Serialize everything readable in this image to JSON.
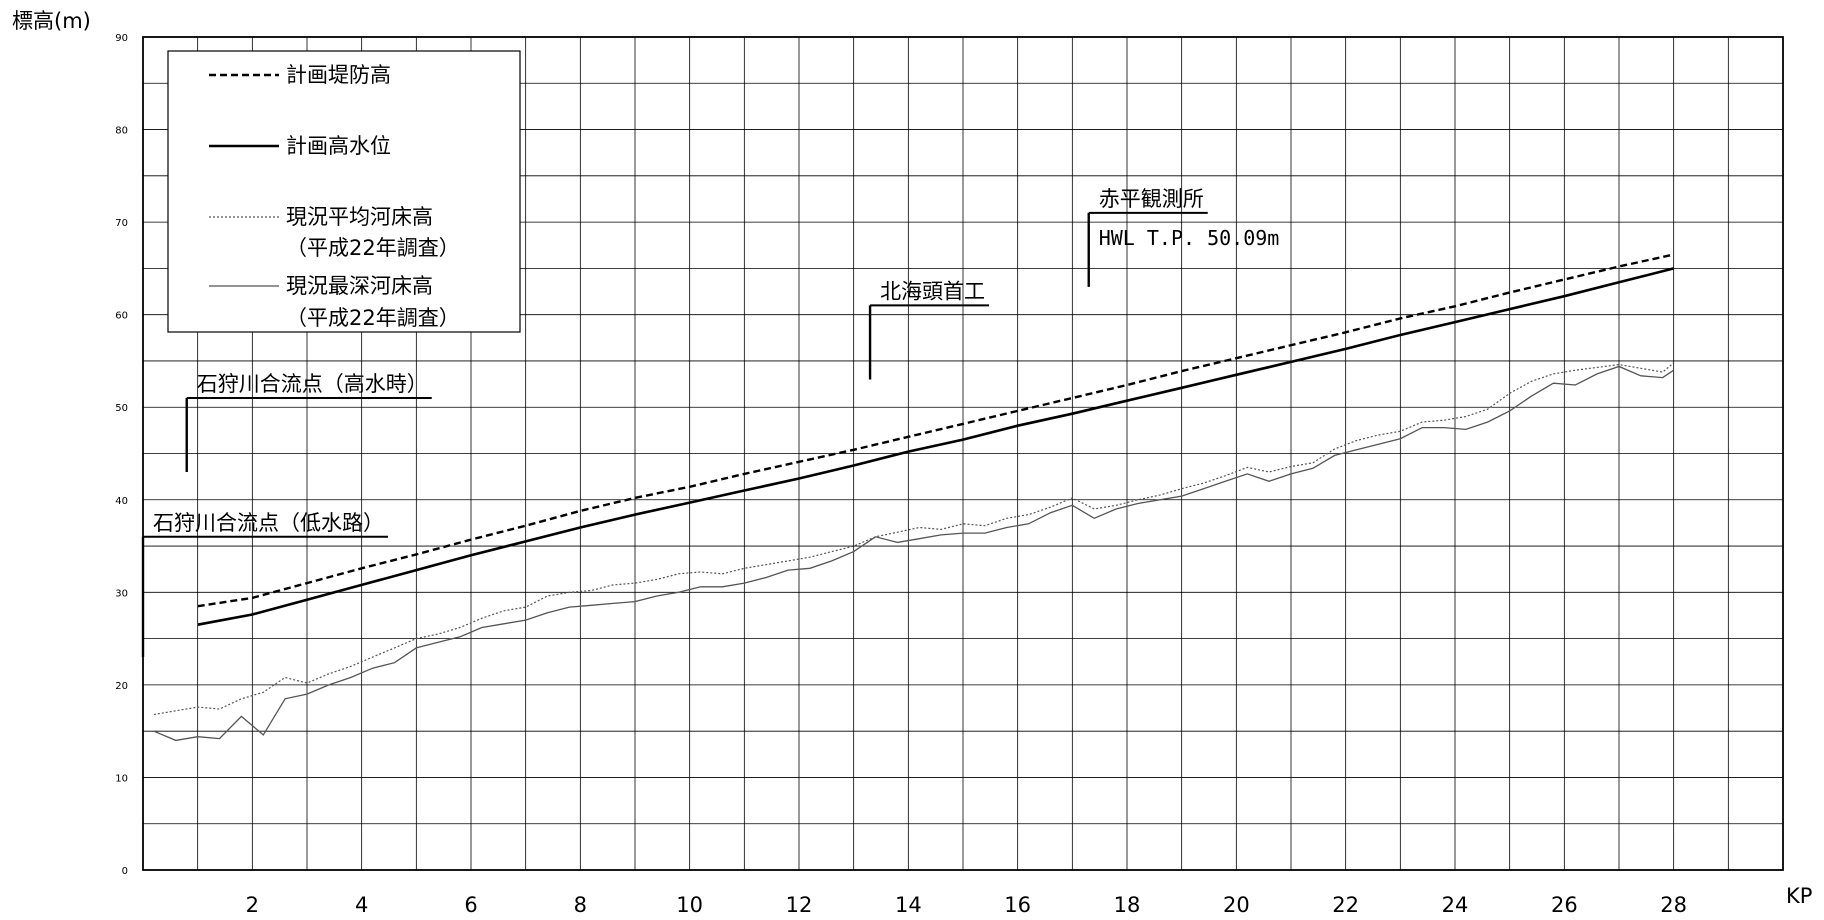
{
  "chart_data": {
    "type": "line",
    "ylabel": "標高(m)",
    "xlabel": "KP",
    "xlim": [
      0,
      30
    ],
    "ylim": [
      0,
      90
    ],
    "x_ticks": [
      2,
      4,
      6,
      8,
      10,
      12,
      14,
      16,
      18,
      20,
      22,
      24,
      26,
      28
    ],
    "y_ticks": [
      0,
      10,
      20,
      30,
      40,
      50,
      60,
      70,
      80,
      90
    ],
    "grid": true,
    "legend_position": "top-left",
    "legend": [
      {
        "line1": "計画堤防高",
        "line2": "",
        "style": "dashed"
      },
      {
        "line1": "計画高水位",
        "line2": "",
        "style": "solid-bold"
      },
      {
        "line1": "現況平均河床高",
        "line2": "（平成22年調査）",
        "style": "dotted"
      },
      {
        "line1": "現況最深河床高",
        "line2": "（平成22年調査）",
        "style": "solid-thin"
      }
    ],
    "series": [
      {
        "name": "計画堤防高",
        "style": "dashed",
        "x": [
          1.0,
          2.0,
          3.0,
          4.0,
          5.0,
          6.0,
          7.0,
          8.0,
          9.0,
          10.0,
          11.0,
          12.0,
          13.0,
          14.0,
          15.0,
          16.0,
          17.0,
          18.0,
          19.0,
          20.0,
          21.0,
          22.0,
          23.0,
          24.0,
          25.0,
          26.0,
          27.0,
          28.0
        ],
        "y": [
          28.5,
          29.4,
          31.0,
          32.6,
          34.1,
          35.7,
          37.2,
          38.8,
          40.2,
          41.4,
          42.8,
          44.1,
          45.4,
          46.8,
          48.2,
          49.6,
          51.0,
          52.4,
          53.9,
          55.3,
          56.7,
          58.1,
          59.6,
          60.9,
          62.4,
          63.8,
          65.2,
          66.5
        ]
      },
      {
        "name": "計画高水位",
        "style": "solid-bold",
        "x": [
          1.0,
          2.0,
          3.0,
          4.0,
          5.0,
          6.0,
          7.0,
          8.0,
          9.0,
          10.0,
          11.0,
          12.0,
          13.0,
          14.0,
          15.0,
          16.0,
          17.0,
          18.0,
          19.0,
          20.0,
          21.0,
          22.0,
          23.0,
          24.0,
          25.0,
          26.0,
          27.0,
          28.0
        ],
        "y": [
          26.5,
          27.6,
          29.2,
          30.8,
          32.4,
          34.0,
          35.5,
          37.0,
          38.4,
          39.7,
          41.0,
          42.3,
          43.7,
          45.2,
          46.5,
          48.0,
          49.3,
          50.7,
          52.1,
          53.5,
          54.9,
          56.3,
          57.8,
          59.2,
          60.6,
          62.0,
          63.5,
          65.0
        ]
      },
      {
        "name": "現況平均河床高",
        "style": "dotted",
        "x": [
          0.2,
          0.6,
          1.0,
          1.4,
          1.8,
          2.2,
          2.6,
          3.0,
          3.4,
          3.8,
          4.2,
          4.6,
          5.0,
          5.4,
          5.8,
          6.2,
          6.6,
          7.0,
          7.4,
          7.8,
          8.2,
          8.6,
          9.0,
          9.4,
          9.8,
          10.2,
          10.6,
          11.0,
          11.4,
          11.8,
          12.2,
          12.6,
          13.0,
          13.4,
          13.8,
          14.2,
          14.6,
          15.0,
          15.4,
          15.8,
          16.2,
          16.6,
          17.0,
          17.4,
          17.8,
          18.2,
          18.6,
          19.0,
          19.4,
          19.8,
          20.2,
          20.6,
          21.0,
          21.4,
          21.8,
          22.2,
          22.6,
          23.0,
          23.4,
          23.8,
          24.2,
          24.6,
          25.0,
          25.4,
          25.8,
          26.2,
          26.6,
          27.0,
          27.4,
          27.8,
          28.0
        ],
        "y": [
          16.8,
          17.2,
          17.6,
          17.4,
          18.5,
          19.2,
          20.8,
          20.2,
          21.2,
          22.0,
          23.0,
          24.0,
          25.0,
          25.5,
          26.2,
          27.2,
          28.0,
          28.4,
          29.6,
          30.0,
          30.2,
          30.8,
          31.0,
          31.4,
          32.0,
          32.2,
          32.0,
          32.6,
          33.0,
          33.4,
          33.8,
          34.4,
          35.0,
          36.0,
          36.5,
          37.0,
          36.8,
          37.4,
          37.2,
          38.0,
          38.4,
          39.2,
          40.2,
          39.0,
          39.4,
          40.0,
          40.5,
          41.2,
          41.8,
          42.6,
          43.5,
          43.0,
          43.6,
          44.0,
          45.5,
          46.4,
          47.0,
          47.4,
          48.4,
          48.6,
          49.0,
          49.8,
          51.5,
          52.8,
          53.6,
          54.0,
          54.3,
          54.6,
          54.2,
          53.8,
          54.8
        ]
      },
      {
        "name": "現況最深河床高",
        "style": "solid-thin",
        "x": [
          0.2,
          0.6,
          1.0,
          1.4,
          1.8,
          2.2,
          2.6,
          3.0,
          3.4,
          3.8,
          4.2,
          4.6,
          5.0,
          5.4,
          5.8,
          6.2,
          6.6,
          7.0,
          7.4,
          7.8,
          8.2,
          8.6,
          9.0,
          9.4,
          9.8,
          10.2,
          10.6,
          11.0,
          11.4,
          11.8,
          12.2,
          12.6,
          13.0,
          13.4,
          13.8,
          14.2,
          14.6,
          15.0,
          15.4,
          15.8,
          16.2,
          16.6,
          17.0,
          17.4,
          17.8,
          18.2,
          18.6,
          19.0,
          19.4,
          19.8,
          20.2,
          20.6,
          21.0,
          21.4,
          21.8,
          22.2,
          22.6,
          23.0,
          23.4,
          23.8,
          24.2,
          24.6,
          25.0,
          25.4,
          25.8,
          26.2,
          26.6,
          27.0,
          27.4,
          27.8,
          28.0
        ],
        "y": [
          15.0,
          14.0,
          14.4,
          14.2,
          16.6,
          14.6,
          18.5,
          19.0,
          20.0,
          20.8,
          21.8,
          22.4,
          24.0,
          24.6,
          25.2,
          26.2,
          26.6,
          27.0,
          27.8,
          28.4,
          28.6,
          28.8,
          29.0,
          29.6,
          30.0,
          30.6,
          30.6,
          31.0,
          31.6,
          32.4,
          32.6,
          33.4,
          34.4,
          36.0,
          35.4,
          35.8,
          36.2,
          36.4,
          36.4,
          37.0,
          37.4,
          38.6,
          39.4,
          38.0,
          39.0,
          39.6,
          40.0,
          40.4,
          41.2,
          42.0,
          42.8,
          42.0,
          42.8,
          43.4,
          44.8,
          45.4,
          46.0,
          46.6,
          47.8,
          47.8,
          47.6,
          48.4,
          49.6,
          51.2,
          52.6,
          52.4,
          53.6,
          54.4,
          53.4,
          53.2,
          54.0
        ]
      }
    ],
    "annotations": [
      {
        "text": "石狩川合流点（低水路）",
        "sub": "",
        "x": 0.0,
        "y_top": 36.0,
        "y_bottom": 23.0
      },
      {
        "text": "石狩川合流点（高水時）",
        "sub": "",
        "x": 0.8,
        "y_top": 51.0,
        "y_bottom": 43.0
      },
      {
        "text": "北海頭首工",
        "sub": "",
        "x": 13.3,
        "y_top": 61.0,
        "y_bottom": 53.0
      },
      {
        "text": "赤平観測所",
        "sub": "HWL T.P. 50.09m",
        "x": 17.3,
        "y_top": 71.0,
        "y_bottom": 63.0
      }
    ]
  }
}
